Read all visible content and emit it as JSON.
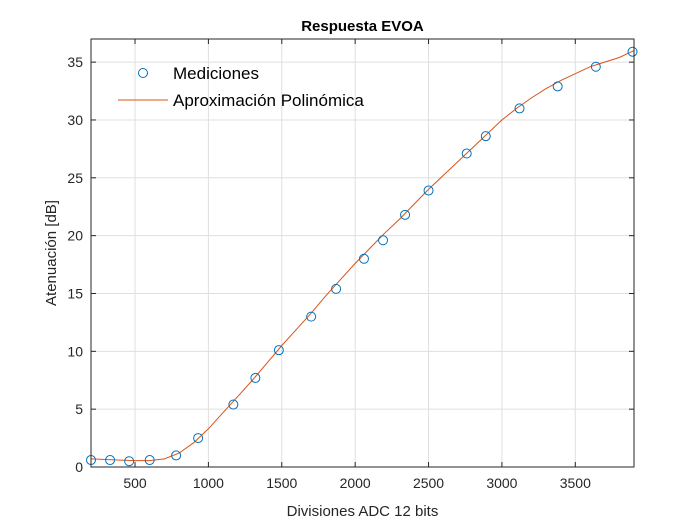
{
  "chart_data": {
    "type": "scatter",
    "title": "Respuesta EVOA",
    "xlabel": "Divisiones ADC 12 bits",
    "ylabel": "Atenuación [dB]",
    "xlim": [
      200,
      3900
    ],
    "ylim": [
      0,
      37
    ],
    "xticks": [
      500,
      1000,
      1500,
      2000,
      2500,
      3000,
      3500
    ],
    "yticks": [
      0,
      5,
      10,
      15,
      20,
      25,
      30,
      35
    ],
    "xtick_labels": [
      "500",
      "1000",
      "1500",
      "2000",
      "2500",
      "3000",
      "3500"
    ],
    "ytick_labels": [
      "0",
      "5",
      "10",
      "15",
      "20",
      "25",
      "30",
      "35"
    ],
    "grid": true,
    "legend_position": "top-left",
    "series": [
      {
        "name": "Mediciones",
        "kind": "markers",
        "marker": "circle-open",
        "color": "#0072BD",
        "x": [
          200,
          330,
          460,
          600,
          780,
          930,
          1170,
          1320,
          1480,
          1700,
          1870,
          2060,
          2190,
          2340,
          2500,
          2760,
          2890,
          3120,
          3380,
          3640,
          3890
        ],
        "y": [
          0.6,
          0.6,
          0.5,
          0.6,
          1.0,
          2.5,
          5.4,
          7.7,
          10.1,
          13.0,
          15.4,
          18.0,
          19.6,
          21.8,
          23.9,
          27.1,
          28.6,
          31.0,
          32.9,
          34.6,
          35.9
        ]
      },
      {
        "name": "Aproximación Polinómica",
        "kind": "line",
        "color": "#D95319",
        "x": [
          200,
          300,
          400,
          500,
          600,
          700,
          800,
          900,
          1000,
          1100,
          1200,
          1300,
          1400,
          1500,
          1600,
          1700,
          1800,
          1900,
          2000,
          2100,
          2200,
          2300,
          2400,
          2500,
          2600,
          2700,
          2800,
          2900,
          3000,
          3100,
          3200,
          3300,
          3400,
          3500,
          3600,
          3700,
          3800,
          3900
        ],
        "y": [
          0.7,
          0.65,
          0.6,
          0.55,
          0.55,
          0.7,
          1.2,
          2.1,
          3.3,
          4.7,
          6.1,
          7.5,
          9.0,
          10.5,
          11.9,
          13.3,
          14.8,
          16.2,
          17.6,
          18.9,
          20.2,
          21.4,
          22.7,
          24.0,
          25.2,
          26.4,
          27.6,
          28.8,
          30.0,
          31.0,
          31.9,
          32.7,
          33.4,
          34.0,
          34.6,
          35.0,
          35.4,
          36.0
        ]
      }
    ]
  }
}
